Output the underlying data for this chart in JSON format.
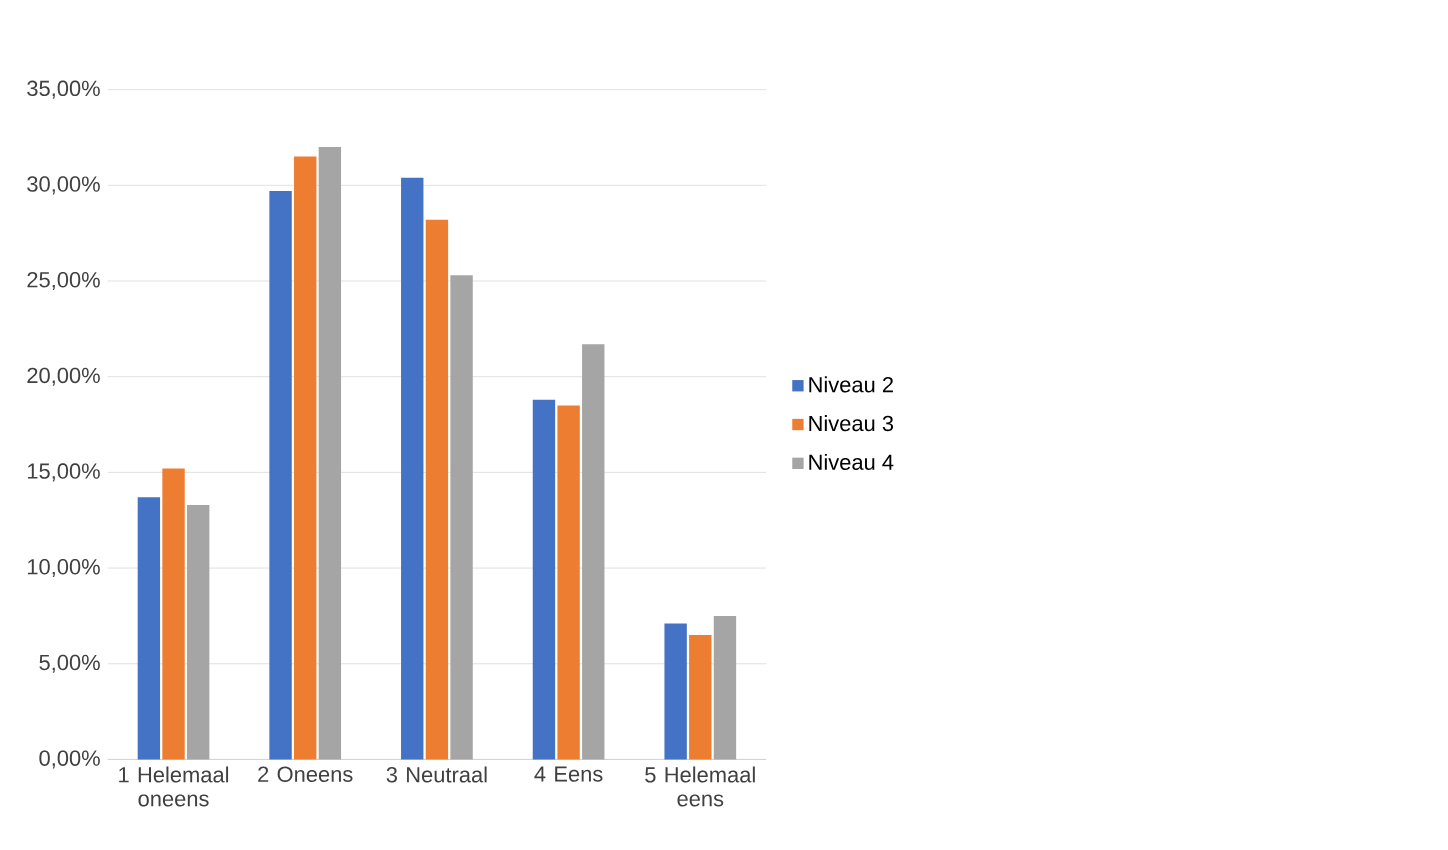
{
  "chart_data": {
    "type": "bar",
    "categories": [
      "1 Helemaal oneens",
      "2 Oneens",
      "3 Neutraal",
      "4 Eens",
      "5 Helemaal eens"
    ],
    "series": [
      {
        "name": "Niveau 2",
        "color": "#4472c4",
        "values": [
          13.7,
          29.7,
          30.4,
          18.8,
          7.1
        ]
      },
      {
        "name": "Niveau 3",
        "color": "#ed7d31",
        "values": [
          15.2,
          31.5,
          28.2,
          18.5,
          6.5
        ]
      },
      {
        "name": "Niveau 4",
        "color": "#a5a5a5",
        "values": [
          13.3,
          32.0,
          25.3,
          21.7,
          7.5
        ]
      }
    ],
    "ylim": [
      0,
      35
    ],
    "yticks": [
      {
        "value": 0,
        "label": "0,00%"
      },
      {
        "value": 5,
        "label": "5,00%"
      },
      {
        "value": 10,
        "label": "10,00%"
      },
      {
        "value": 15,
        "label": "15,00%"
      },
      {
        "value": 20,
        "label": "20,00%"
      },
      {
        "value": 25,
        "label": "25,00%"
      },
      {
        "value": 30,
        "label": "30,00%"
      },
      {
        "value": 35,
        "label": "35,00%"
      }
    ],
    "grid": "y",
    "legend": "right"
  }
}
